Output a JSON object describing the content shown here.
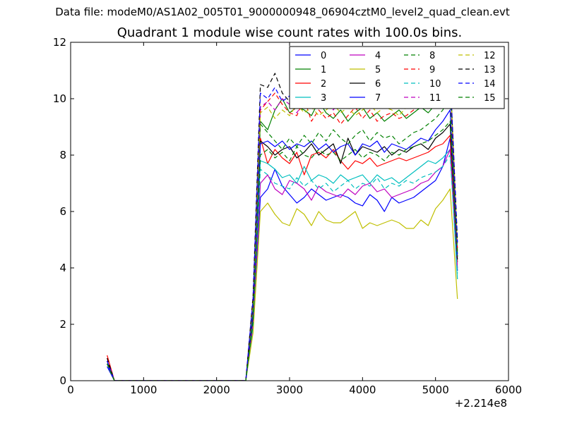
{
  "suptitle": "Data file: modeM0/AS1A02_005T01_9000000948_06904cztM0_level2_quad_clean.evt",
  "chart_data": {
    "type": "line",
    "title": "Quadrant 1 module wise count rates with 100.0s bins.",
    "xlabel": "",
    "ylabel": "",
    "x_offset_text": "+2.214e8",
    "xlim": [
      0,
      6000
    ],
    "ylim": [
      0,
      12
    ],
    "xticks": [
      0,
      1000,
      2000,
      3000,
      4000,
      5000,
      6000
    ],
    "yticks": [
      0,
      2,
      4,
      6,
      8,
      10,
      12
    ],
    "grid": false,
    "legend": {
      "placement": "top-right",
      "columns": 4
    },
    "x": [
      500,
      600,
      2400,
      2500,
      2600,
      2700,
      2800,
      2900,
      3000,
      3100,
      3200,
      3300,
      3400,
      3500,
      3600,
      3700,
      3800,
      3900,
      4000,
      4100,
      4200,
      4300,
      4400,
      4500,
      4600,
      4700,
      4800,
      4900,
      5000,
      5100,
      5200,
      5300
    ],
    "series": [
      {
        "name": "0",
        "color": "#0000ff",
        "dashed": false,
        "values": [
          0.5,
          0,
          0,
          2.0,
          6.5,
          6.8,
          7.5,
          6.9,
          6.6,
          6.3,
          6.5,
          6.8,
          6.6,
          6.4,
          6.5,
          6.6,
          6.5,
          6.3,
          6.2,
          6.6,
          6.4,
          6.0,
          6.5,
          6.3,
          6.4,
          6.5,
          6.7,
          6.9,
          7.1,
          7.6,
          8.6,
          3.9
        ]
      },
      {
        "name": "1",
        "color": "#008000",
        "dashed": false,
        "values": [
          0.6,
          0,
          0,
          2.5,
          9.2,
          8.9,
          9.6,
          10.0,
          9.5,
          9.7,
          9.6,
          9.4,
          9.9,
          9.5,
          9.3,
          9.6,
          9.2,
          9.5,
          9.7,
          9.3,
          9.5,
          9.2,
          9.4,
          9.6,
          9.3,
          9.5,
          9.7,
          9.5,
          9.8,
          10.2,
          10.9,
          4.5
        ]
      },
      {
        "name": "2",
        "color": "#ff0000",
        "dashed": false,
        "values": [
          0.9,
          0,
          0,
          2.2,
          8.6,
          7.7,
          8.2,
          7.9,
          7.7,
          8.1,
          7.3,
          8.0,
          8.1,
          7.9,
          8.2,
          7.8,
          7.5,
          7.8,
          7.7,
          7.9,
          7.6,
          7.7,
          7.8,
          7.9,
          7.8,
          7.9,
          8.0,
          8.1,
          8.3,
          8.4,
          8.7,
          4.2
        ]
      },
      {
        "name": "3",
        "color": "#00bfbf",
        "dashed": false,
        "values": [
          0.6,
          0,
          0,
          1.9,
          7.8,
          7.7,
          7.5,
          7.2,
          7.3,
          7.0,
          7.6,
          7.1,
          7.3,
          7.2,
          7.0,
          7.3,
          7.1,
          7.2,
          7.3,
          7.0,
          7.3,
          7.1,
          7.2,
          7.0,
          7.2,
          7.4,
          7.6,
          7.8,
          7.7,
          7.9,
          8.2,
          3.6
        ]
      },
      {
        "name": "4",
        "color": "#bf00bf",
        "dashed": false,
        "values": [
          0.7,
          0,
          0,
          2.0,
          7.0,
          7.3,
          6.8,
          6.6,
          7.1,
          7.0,
          6.8,
          6.4,
          6.9,
          6.7,
          6.6,
          6.5,
          6.8,
          6.6,
          6.9,
          7.0,
          6.7,
          6.8,
          6.5,
          6.6,
          6.7,
          6.8,
          7.0,
          7.1,
          7.4,
          7.6,
          8.2,
          4.0
        ]
      },
      {
        "name": "5",
        "color": "#bfbf00",
        "dashed": false,
        "values": [
          0.6,
          0,
          0,
          1.7,
          6.0,
          6.3,
          5.9,
          5.6,
          5.5,
          6.1,
          5.9,
          5.5,
          6.0,
          5.7,
          5.6,
          5.6,
          5.8,
          6.0,
          5.4,
          5.6,
          5.5,
          5.6,
          5.7,
          5.6,
          5.4,
          5.4,
          5.7,
          5.5,
          6.1,
          6.4,
          6.8,
          2.9
        ]
      },
      {
        "name": "6",
        "color": "#000000",
        "dashed": false,
        "values": [
          0.7,
          0,
          0,
          2.3,
          8.5,
          8.3,
          8.0,
          8.2,
          8.3,
          7.9,
          8.1,
          8.4,
          8.0,
          8.2,
          8.4,
          7.7,
          8.6,
          8.0,
          8.3,
          8.2,
          8.1,
          8.3,
          8.0,
          8.2,
          8.1,
          8.3,
          8.4,
          8.2,
          8.6,
          8.8,
          9.1,
          4.3
        ]
      },
      {
        "name": "7",
        "color": "#0000ff",
        "dashed": false,
        "values": [
          0.6,
          0,
          0,
          2.4,
          8.4,
          8.5,
          8.3,
          8.5,
          8.2,
          8.4,
          8.3,
          8.5,
          8.2,
          8.4,
          8.1,
          8.3,
          8.4,
          8.0,
          8.4,
          8.3,
          8.5,
          8.1,
          8.4,
          8.3,
          8.2,
          8.4,
          8.6,
          8.5,
          8.9,
          9.2,
          9.6,
          4.4
        ]
      },
      {
        "name": "8",
        "color": "#008000",
        "dashed": true,
        "values": [
          0.7,
          0,
          0,
          2.6,
          9.1,
          8.8,
          8.5,
          8.2,
          8.6,
          8.3,
          8.7,
          8.4,
          8.8,
          8.5,
          8.9,
          8.6,
          8.4,
          8.7,
          8.9,
          8.5,
          8.8,
          8.6,
          8.7,
          8.4,
          8.6,
          8.8,
          8.9,
          9.1,
          9.3,
          9.6,
          10.1,
          4.6
        ]
      },
      {
        "name": "9",
        "color": "#ff0000",
        "dashed": true,
        "values": [
          0.8,
          0,
          0,
          2.8,
          9.6,
          9.9,
          10.2,
          9.8,
          9.5,
          9.4,
          10.0,
          9.2,
          9.6,
          9.3,
          9.5,
          9.1,
          9.4,
          9.7,
          9.3,
          9.6,
          9.2,
          9.4,
          9.5,
          9.3,
          9.4,
          9.6,
          9.8,
          9.7,
          10.0,
          10.3,
          10.6,
          4.7
        ]
      },
      {
        "name": "10",
        "color": "#00bfbf",
        "dashed": true,
        "values": [
          0.6,
          0,
          0,
          2.0,
          7.5,
          7.3,
          7.0,
          6.9,
          6.8,
          7.2,
          6.9,
          7.1,
          6.8,
          7.0,
          6.7,
          6.9,
          7.1,
          6.8,
          7.0,
          6.9,
          7.2,
          6.8,
          7.0,
          6.9,
          7.1,
          7.0,
          7.2,
          7.3,
          7.4,
          7.6,
          8.0,
          3.8
        ]
      },
      {
        "name": "11",
        "color": "#bf00bf",
        "dashed": true,
        "values": [
          0.7,
          0,
          0,
          2.9,
          9.7,
          9.9,
          9.6,
          10.0,
          9.8,
          9.5,
          9.9,
          9.7,
          10.1,
          9.8,
          9.6,
          10.0,
          9.7,
          9.9,
          10.2,
          9.8,
          10.0,
          9.7,
          9.9,
          10.1,
          9.8,
          10.0,
          10.2,
          10.1,
          10.4,
          10.6,
          11.0,
          4.9
        ]
      },
      {
        "name": "12",
        "color": "#bfbf00",
        "dashed": true,
        "values": [
          0.6,
          0,
          0,
          2.7,
          9.5,
          9.7,
          9.3,
          9.6,
          9.4,
          9.8,
          9.5,
          9.7,
          9.4,
          9.6,
          9.8,
          9.5,
          9.7,
          9.4,
          9.6,
          9.8,
          9.5,
          9.7,
          9.6,
          9.4,
          9.7,
          9.9,
          10.0,
          10.2,
          10.4,
          10.7,
          11.1,
          4.8
        ]
      },
      {
        "name": "13",
        "color": "#000000",
        "dashed": true,
        "values": [
          0.8,
          0,
          0,
          3.0,
          10.5,
          10.4,
          10.9,
          10.2,
          9.9,
          9.7,
          10.1,
          9.8,
          10.0,
          9.7,
          9.9,
          10.2,
          9.8,
          10.0,
          9.9,
          10.1,
          9.8,
          10.0,
          9.9,
          9.7,
          10.0,
          10.2,
          10.3,
          10.1,
          10.5,
          10.7,
          10.9,
          5.0
        ]
      },
      {
        "name": "14",
        "color": "#0000ff",
        "dashed": true,
        "values": [
          0.7,
          0,
          0,
          2.9,
          10.2,
          10.0,
          10.4,
          9.9,
          10.1,
          9.7,
          10.3,
          9.8,
          10.0,
          10.2,
          9.9,
          10.1,
          10.4,
          9.8,
          10.2,
          10.0,
          10.3,
          9.9,
          10.1,
          10.0,
          10.2,
          10.4,
          10.3,
          10.1,
          10.5,
          10.8,
          10.9,
          4.9
        ]
      },
      {
        "name": "15",
        "color": "#008000",
        "dashed": true,
        "values": [
          0.6,
          0,
          0,
          2.1,
          8.0,
          8.2,
          7.9,
          8.1,
          7.8,
          8.3,
          8.0,
          7.9,
          8.2,
          8.0,
          8.1,
          7.8,
          8.0,
          8.2,
          7.9,
          8.1,
          8.0,
          7.8,
          8.1,
          8.0,
          8.2,
          8.3,
          8.4,
          8.5,
          8.7,
          8.9,
          9.2,
          4.4
        ]
      }
    ]
  }
}
